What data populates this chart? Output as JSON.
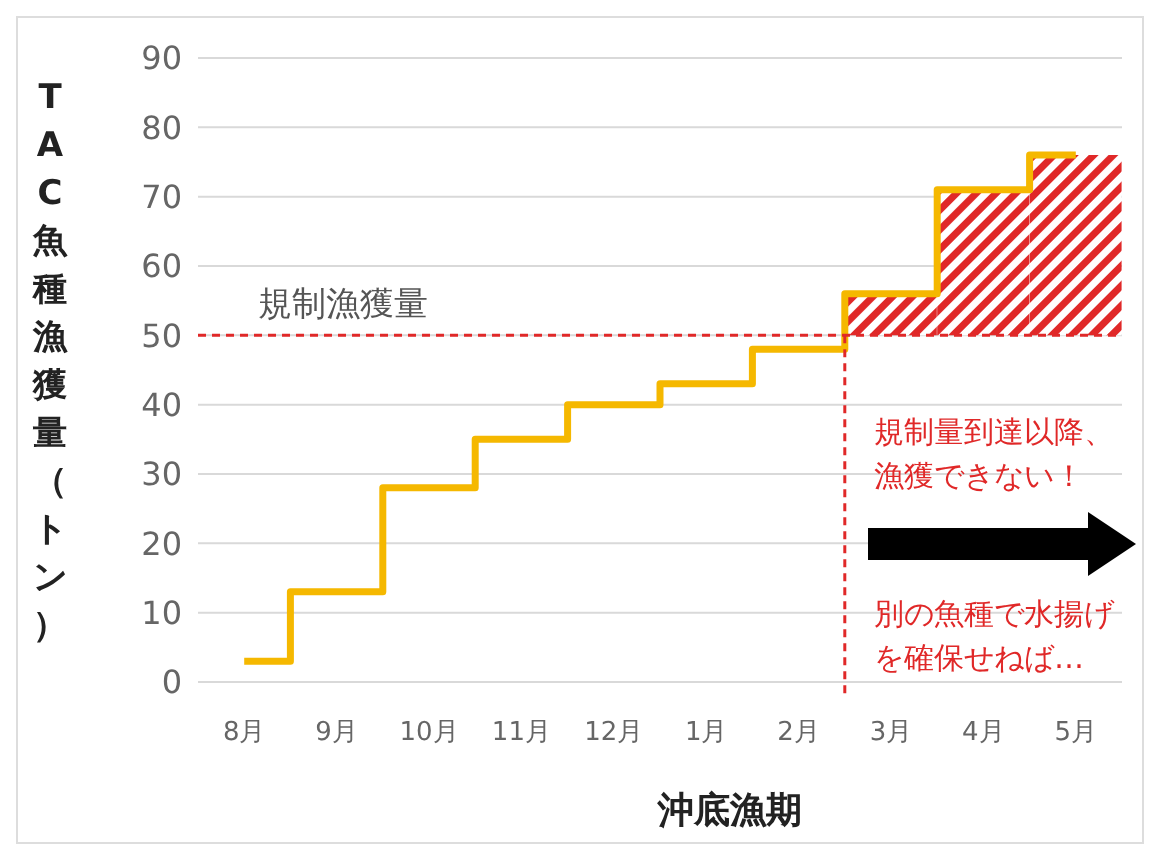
{
  "chart_data": {
    "type": "step",
    "xlabel": "沖底漁期",
    "ylabel": "TAC魚種漁獲量（トン）",
    "categories": [
      "8月",
      "9月",
      "10月",
      "11月",
      "12月",
      "1月",
      "2月",
      "3月",
      "4月",
      "5月"
    ],
    "series": [
      {
        "type": "bar",
        "color": "#e02828",
        "base": [
          null,
          null,
          null,
          null,
          null,
          null,
          null,
          50,
          50,
          50
        ],
        "values": [
          null,
          null,
          null,
          null,
          null,
          null,
          null,
          6,
          21,
          26
        ]
      },
      {
        "type": "step",
        "color": "#f5b800",
        "values": [
          3,
          13,
          28,
          35,
          40,
          43,
          48,
          56,
          71,
          76
        ]
      }
    ],
    "ylim": [
      0,
      90
    ],
    "yticks": [
      0,
      10,
      20,
      30,
      40,
      50,
      60,
      70,
      80,
      90
    ],
    "grid": "y",
    "legend": false,
    "ref_lines": [
      {
        "axis": "y",
        "value": 50,
        "label": "規制漁獲量",
        "color": "#e02828",
        "line_style": "dotted"
      },
      {
        "axis": "x",
        "value": "3月",
        "label": null,
        "color": "#e02828",
        "line_style": "dotted"
      }
    ],
    "annotations": [
      "規制量到達以降、漁獲できない！",
      "別の魚種で水揚げを確保せねば…"
    ]
  }
}
